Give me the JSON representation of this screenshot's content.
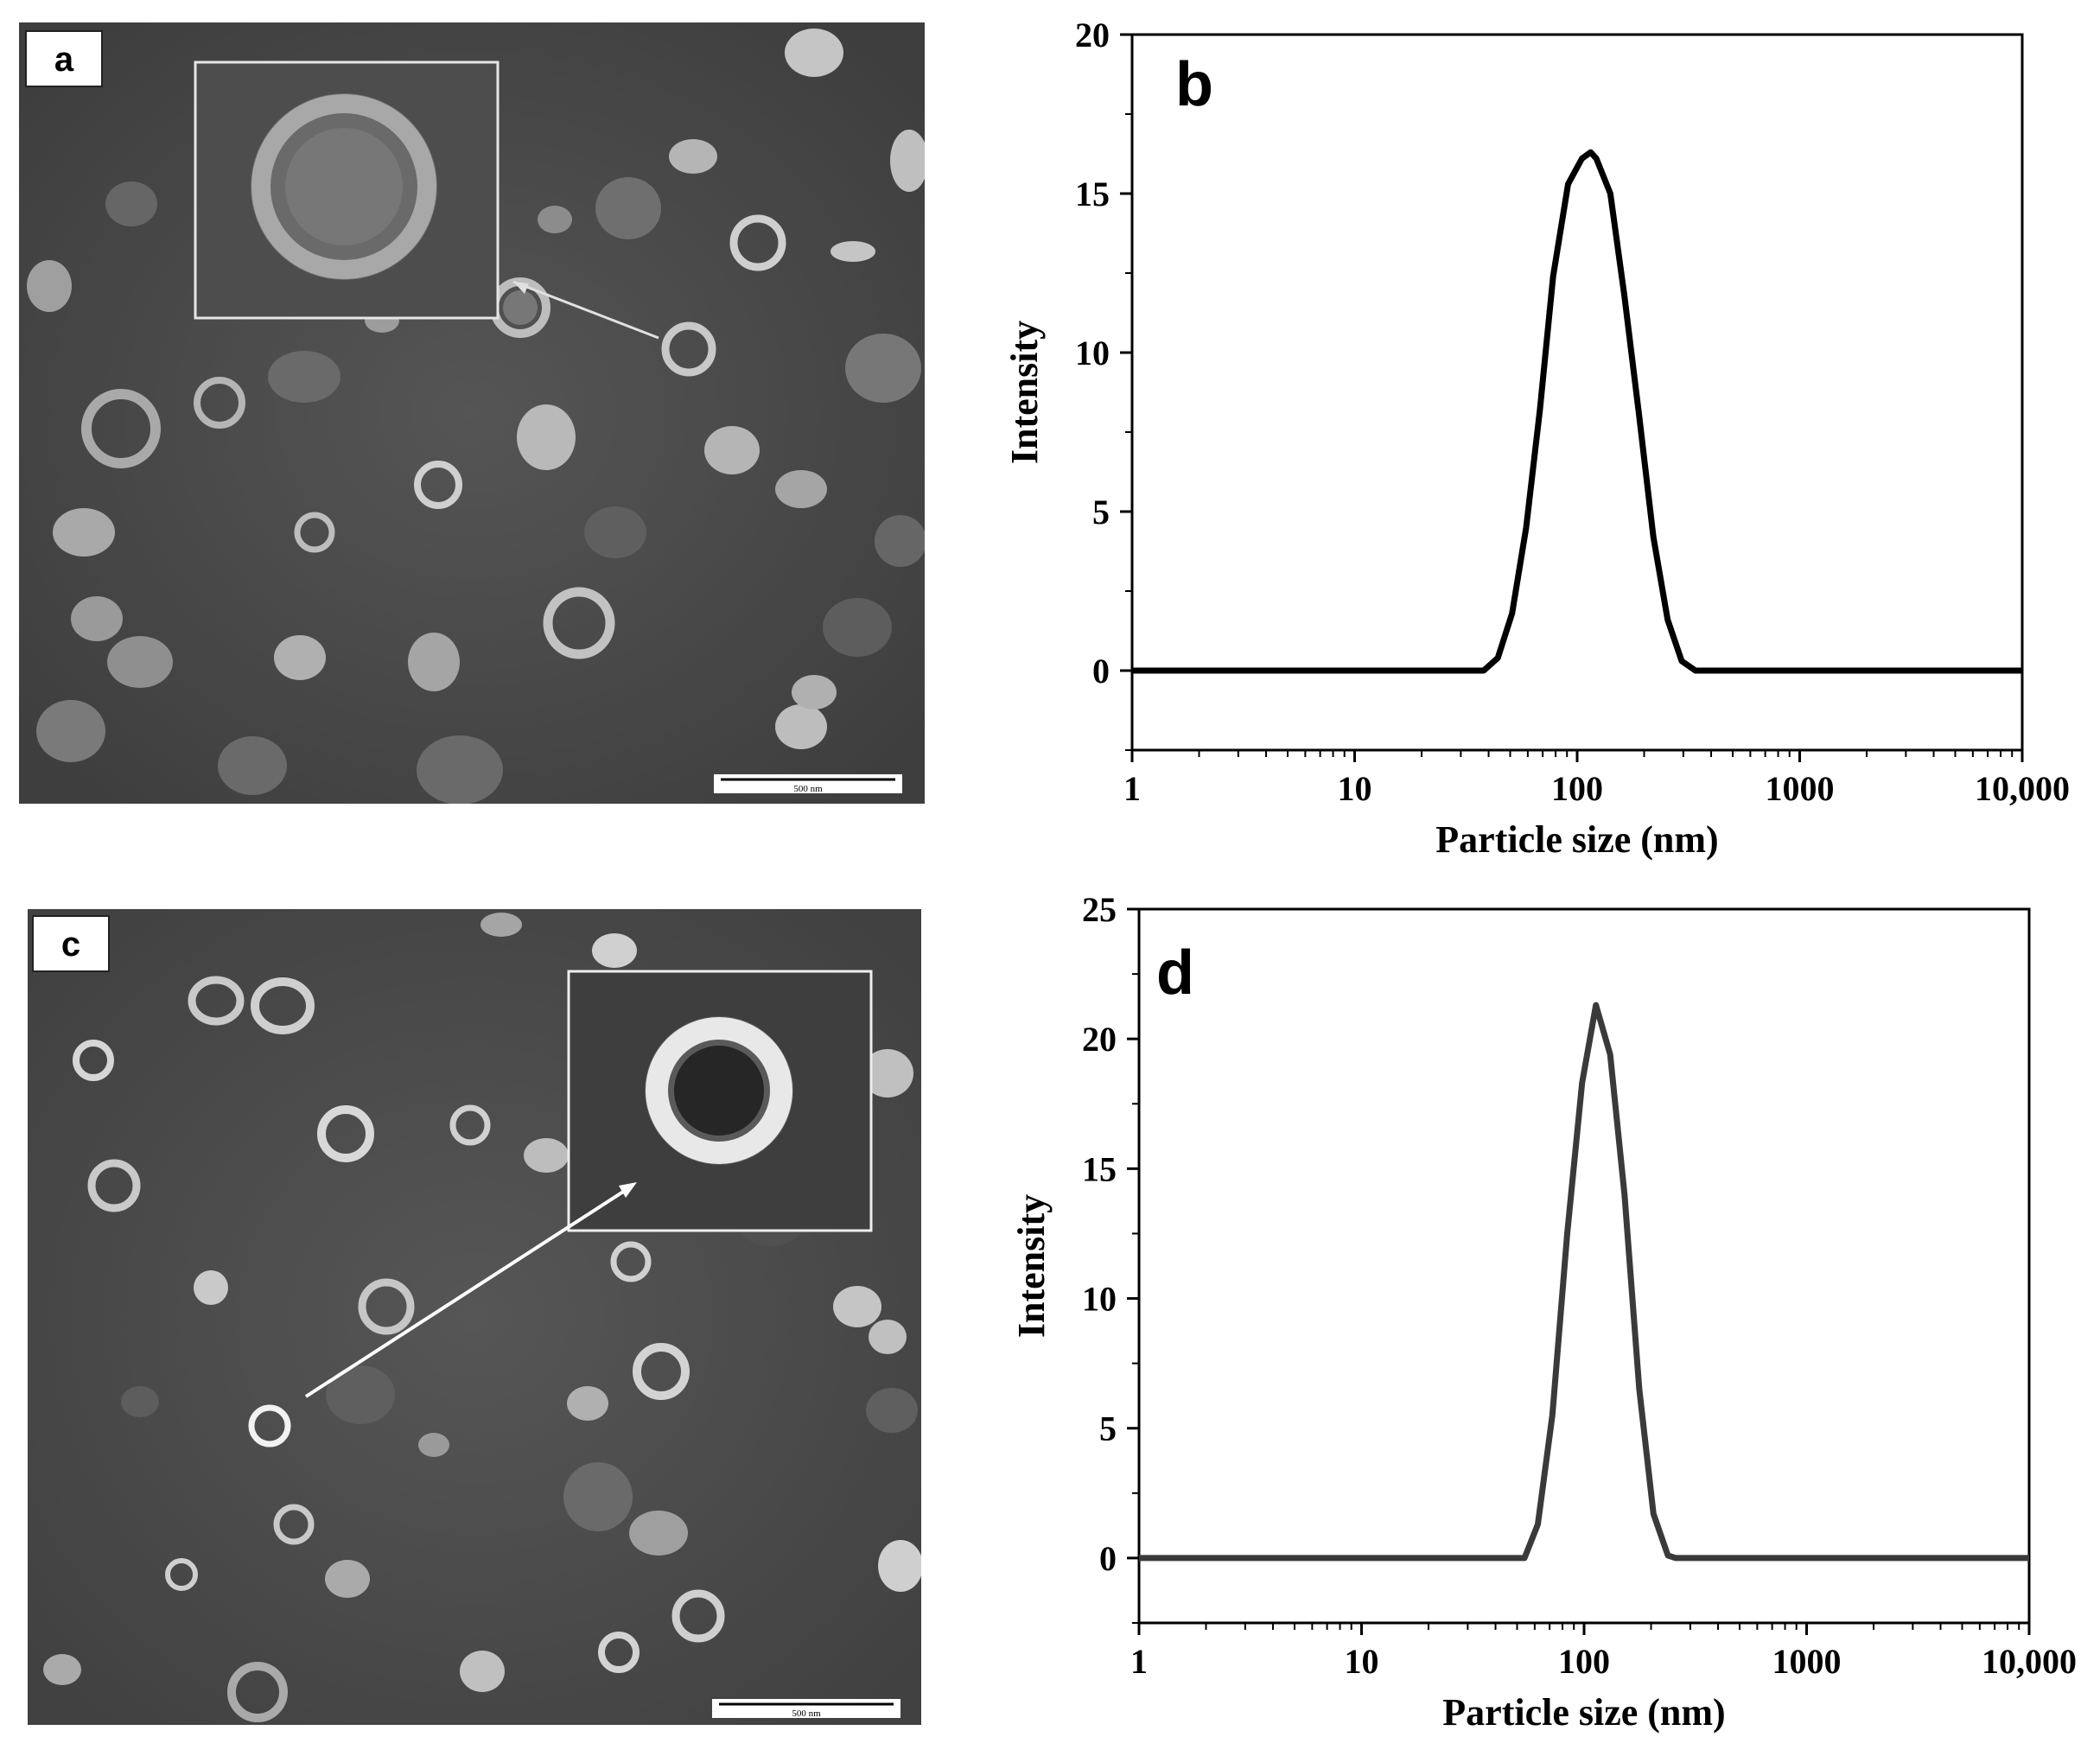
{
  "figure": {
    "panels": {
      "a": {
        "label": "a",
        "scalebar": "500 nm"
      },
      "b": {
        "label": "b"
      },
      "c": {
        "label": "c",
        "scalebar": "500 nm"
      },
      "d": {
        "label": "d"
      }
    }
  },
  "colors": {
    "line_b": "#000000",
    "line_d": "#3a3a3a",
    "tem_bg": "#4a4a4a"
  },
  "chart_data": [
    {
      "panel": "b",
      "type": "line",
      "xscale": "log",
      "xlabel": "Particle size (nm)",
      "ylabel": "Intensity",
      "xlim": [
        1,
        10000
      ],
      "ylim": [
        -2.5,
        20
      ],
      "xticks": [
        "1",
        "10",
        "100",
        "1000",
        "10,000"
      ],
      "yticks": [
        "0",
        "5",
        "10",
        "15",
        "20"
      ],
      "series": [
        {
          "x": [
            1,
            38,
            44,
            51,
            59,
            68,
            78,
            91,
            105,
            115,
            122,
            141,
            163,
            190,
            220,
            255,
            295,
            340,
            10000
          ],
          "y": [
            0,
            0,
            0.4,
            1.8,
            4.5,
            8.2,
            12.4,
            15.3,
            16.1,
            16.3,
            16.1,
            15.0,
            11.8,
            8.0,
            4.2,
            1.6,
            0.3,
            0,
            0
          ]
        }
      ]
    },
    {
      "panel": "d",
      "type": "line",
      "xscale": "log",
      "xlabel": "Particle size (nm)",
      "ylabel": "Intensity",
      "xlim": [
        1,
        10000
      ],
      "ylim": [
        -2.5,
        25
      ],
      "xticks": [
        "1",
        "10",
        "100",
        "1000",
        "10,000"
      ],
      "yticks": [
        "0",
        "5",
        "10",
        "15",
        "20",
        "25"
      ],
      "series": [
        {
          "x": [
            1,
            54,
            62,
            72,
            84,
            98,
            113,
            131,
            152,
            177,
            205,
            238,
            258,
            10000
          ],
          "y": [
            0,
            0,
            1.3,
            5.5,
            12.5,
            18.3,
            21.3,
            19.4,
            14.0,
            6.5,
            1.7,
            0.1,
            0,
            0
          ]
        }
      ]
    }
  ]
}
